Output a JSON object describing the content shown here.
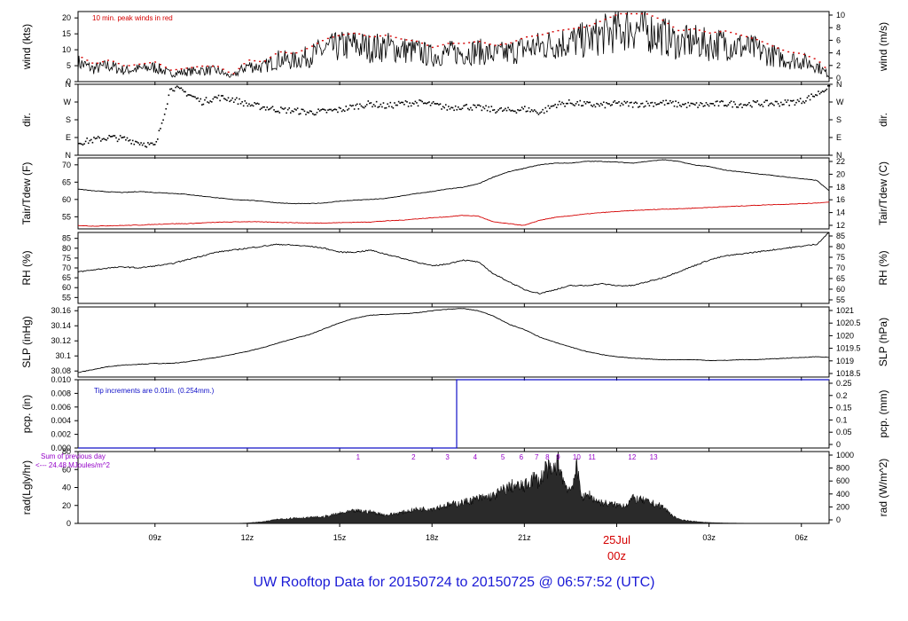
{
  "title": "UW Rooftop Data for 20150724  to  20150725 @ 06:57:52  (UTC)",
  "colors": {
    "trace": "#000000",
    "red": "#d40000",
    "blue": "#1010c8",
    "purple": "#9400c8",
    "title": "#1a1ad6"
  },
  "chart_data": [
    {
      "type": "line",
      "id": "wind",
      "ylabel": "wind (kts)",
      "ylabel_right": "wind (m/s)",
      "ylim": [
        0,
        22
      ],
      "yticks": [
        0,
        5,
        10,
        15,
        20
      ],
      "yticks_right_labels": [
        "0",
        "2",
        "4",
        "6",
        "8",
        "10"
      ],
      "annotation": "10 min. peak winds in red",
      "series": [
        {
          "x": [
            6.5,
            7,
            7.5,
            8,
            8.5,
            9,
            9.5,
            10,
            10.5,
            11,
            11.5,
            12,
            12.5,
            13,
            13.5,
            14,
            14.5,
            15,
            15.5,
            16,
            16.5,
            17,
            17.5,
            18,
            18.5,
            19,
            19.5,
            20,
            20.5,
            21,
            21.5,
            22,
            22.5,
            23,
            23.5,
            24,
            24.5,
            25,
            25.5,
            26,
            26.5,
            27,
            27.5,
            28,
            28.5,
            29,
            29.5,
            30,
            30.5,
            30.9
          ],
          "y": [
            6,
            4,
            5,
            3.5,
            4,
            4.5,
            2.5,
            3,
            3.5,
            3.5,
            1.5,
            5,
            4.5,
            7,
            6.5,
            8,
            10,
            11,
            11.5,
            10.5,
            11,
            10,
            9.5,
            8,
            9,
            9,
            9.5,
            8.5,
            9,
            10.5,
            11,
            12,
            12.5,
            13,
            14.5,
            16,
            17,
            16,
            14.5,
            12,
            12.5,
            11.5,
            12,
            11,
            10,
            8.5,
            7,
            6.5,
            5,
            2
          ]
        }
      ]
    },
    {
      "type": "scatter",
      "id": "dir",
      "ylabel": "dir.",
      "ylabel_right": "dir.",
      "yticks_labels": [
        "N",
        "E",
        "S",
        "W",
        "N"
      ],
      "series": [
        {
          "x": [
            6.5,
            7,
            7.5,
            8,
            8.5,
            9,
            9.5,
            10,
            10.5,
            11,
            11.5,
            12,
            12.5,
            13,
            13.5,
            14,
            14.5,
            15,
            15.5,
            16,
            16.5,
            17,
            17.5,
            18,
            18.5,
            19,
            19.5,
            20,
            20.5,
            21,
            21.5,
            22,
            22.5,
            23,
            23.5,
            24,
            24.5,
            25,
            25.5,
            26,
            26.5,
            27,
            27.5,
            28,
            28.5,
            29,
            29.5,
            30,
            30.5,
            30.9
          ],
          "y": [
            0.75,
            0.9,
            1.05,
            0.95,
            0.75,
            0.55,
            3.9,
            3.55,
            3.05,
            3.3,
            3.2,
            2.9,
            2.75,
            2.6,
            2.55,
            2.45,
            2.5,
            2.6,
            2.8,
            2.95,
            2.8,
            2.95,
            3.0,
            2.9,
            2.7,
            2.8,
            2.7,
            2.6,
            2.55,
            2.65,
            2.45,
            2.9,
            3.0,
            2.9,
            2.85,
            2.95,
            2.9,
            2.95,
            3.0,
            2.9,
            2.85,
            2.9,
            2.95,
            2.9,
            2.95,
            2.95,
            3.0,
            3.1,
            3.5,
            3.95
          ]
        }
      ]
    },
    {
      "type": "line",
      "id": "temp",
      "ylabel": "Tair/Tdew (F)",
      "ylabel_right": "Tair/Tdew (C)",
      "ylim": [
        51.5,
        72
      ],
      "yticks": [
        55,
        60,
        65,
        70
      ],
      "yticks_right_labels": [
        "12",
        "14",
        "16",
        "18",
        "20",
        "22"
      ],
      "series": [
        {
          "name": "Tair",
          "color": "black",
          "x": [
            6.5,
            7,
            7.5,
            8,
            8.5,
            9,
            9.5,
            10,
            10.5,
            11,
            11.5,
            12,
            12.5,
            13,
            13.5,
            14,
            14.5,
            15,
            15.5,
            16,
            16.5,
            17,
            17.5,
            18,
            18.5,
            19,
            19.5,
            20,
            20.5,
            21,
            21.5,
            22,
            22.5,
            23,
            23.5,
            24,
            24.5,
            25,
            25.5,
            26,
            26.5,
            27,
            27.5,
            28,
            28.5,
            29,
            29.5,
            30,
            30.5,
            30.9
          ],
          "y": [
            63,
            62.5,
            62.2,
            62,
            62.3,
            62,
            61.8,
            61.5,
            61,
            60.5,
            60,
            59.8,
            59.5,
            59,
            58.8,
            58.8,
            59,
            59.5,
            59.8,
            60,
            60.3,
            61,
            61.7,
            62.3,
            63,
            63.5,
            64.5,
            66.5,
            68,
            69,
            70,
            70.5,
            70.5,
            71,
            71,
            70.8,
            70.5,
            71,
            71.5,
            71,
            70,
            69.5,
            68.5,
            68,
            67.5,
            67,
            66.5,
            66,
            65.5,
            62.5
          ]
        },
        {
          "name": "Tdew",
          "color": "red",
          "x": [
            6.5,
            7,
            7.5,
            8,
            8.5,
            9,
            9.5,
            10,
            10.5,
            11,
            11.5,
            12,
            12.5,
            13,
            13.5,
            14,
            14.5,
            15,
            15.5,
            16,
            16.5,
            17,
            17.5,
            18,
            18.5,
            19,
            19.5,
            20,
            20.5,
            21,
            21.5,
            22,
            22.5,
            23,
            23.5,
            24,
            24.5,
            25,
            25.5,
            26,
            26.5,
            27,
            27.5,
            28,
            28.5,
            29,
            29.5,
            30,
            30.5,
            30.9
          ],
          "y": [
            52.5,
            52.3,
            52.4,
            52.5,
            52.6,
            52.8,
            53,
            53,
            53.2,
            53.4,
            53.5,
            53.6,
            53.5,
            53.4,
            53.3,
            53.2,
            53.2,
            53.3,
            53.4,
            53.5,
            53.8,
            54,
            54.4,
            54.7,
            55,
            55.4,
            55.2,
            53.5,
            53,
            52.5,
            54,
            54.8,
            55.3,
            55.8,
            56.2,
            56.5,
            56.8,
            57,
            57.2,
            57.3,
            57.5,
            57.7,
            57.9,
            58.1,
            58.3,
            58.5,
            58.6,
            58.8,
            59,
            59.2
          ]
        }
      ]
    },
    {
      "type": "line",
      "id": "rh",
      "ylabel": "RH (%)",
      "ylabel_right": "RH (%)",
      "ylim": [
        52,
        88
      ],
      "yticks": [
        55,
        60,
        65,
        70,
        75,
        80,
        85
      ],
      "yticks_right_labels": [
        "55",
        "60",
        "65",
        "70",
        "75",
        "80",
        "85"
      ],
      "series": [
        {
          "x": [
            6.5,
            7,
            7.5,
            8,
            8.5,
            9,
            9.5,
            10,
            10.5,
            11,
            11.5,
            12,
            12.5,
            13,
            13.5,
            14,
            14.5,
            15,
            15.5,
            16,
            16.5,
            17,
            17.5,
            18,
            18.5,
            19,
            19.5,
            20,
            20.5,
            21,
            21.5,
            22,
            22.5,
            23,
            23.5,
            24,
            24.5,
            25,
            25.5,
            26,
            26.5,
            27,
            27.5,
            28,
            28.5,
            29,
            29.5,
            30,
            30.5,
            30.9
          ],
          "y": [
            68,
            69,
            70,
            70.5,
            70,
            71,
            72,
            74,
            76,
            78,
            79,
            80,
            81,
            82,
            81.5,
            81,
            80,
            78,
            78,
            79,
            77,
            75,
            73,
            71,
            72,
            74,
            73,
            67,
            63,
            59,
            57,
            59,
            61,
            61,
            62,
            61,
            61,
            63,
            65,
            68,
            71,
            74,
            76,
            77,
            78,
            79,
            80,
            81,
            82,
            88
          ]
        }
      ]
    },
    {
      "type": "line",
      "id": "slp",
      "ylabel": "SLP (inHg)",
      "ylabel_right": "SLP (hPa)",
      "ylim": [
        30.072,
        30.165
      ],
      "yticks": [
        30.08,
        30.1,
        30.12,
        30.14,
        30.16
      ],
      "yticks_right_labels": [
        "1018.5",
        "1019",
        "1019.5",
        "1020",
        "1020.5",
        "1021"
      ],
      "series": [
        {
          "x": [
            6.5,
            7,
            7.5,
            8,
            8.5,
            9,
            9.5,
            10,
            10.5,
            11,
            11.5,
            12,
            12.5,
            13,
            13.5,
            14,
            14.5,
            15,
            15.5,
            16,
            16.5,
            17,
            17.5,
            18,
            18.5,
            19,
            19.5,
            20,
            20.5,
            21,
            21.5,
            22,
            22.5,
            23,
            23.5,
            24,
            24.5,
            25,
            25.5,
            26,
            26.5,
            27,
            27.5,
            28,
            28.5,
            29,
            29.5,
            30,
            30.5,
            30.9
          ],
          "y": [
            30.078,
            30.082,
            30.086,
            30.088,
            30.089,
            30.09,
            30.09,
            30.092,
            30.095,
            30.098,
            30.102,
            30.106,
            30.111,
            30.117,
            30.123,
            30.128,
            30.136,
            30.144,
            30.15,
            30.154,
            30.155,
            30.156,
            30.157,
            30.16,
            30.162,
            30.163,
            30.16,
            30.153,
            30.142,
            30.135,
            30.125,
            30.118,
            30.112,
            30.106,
            30.102,
            30.099,
            30.097,
            30.096,
            30.095,
            30.095,
            30.095,
            30.094,
            30.094,
            30.095,
            30.095,
            30.096,
            30.097,
            30.098,
            30.099,
            30.098
          ]
        }
      ]
    },
    {
      "type": "line",
      "id": "pcp",
      "ylabel": "pcp. (in)",
      "ylabel_right": "pcp. (mm)",
      "ylim": [
        0,
        0.01
      ],
      "yticks": [
        0,
        0.002,
        0.004,
        0.006,
        0.008,
        0.01
      ],
      "yticks_labels": [
        "0.000",
        "0.002",
        "0.004",
        "0.006",
        "0.008",
        "0.010"
      ],
      "yticks_right_labels": [
        "0",
        "0.05",
        "0.1",
        "0.15",
        "0.2",
        "0.25"
      ],
      "annotation": "Tip increments are 0.01in. (0.254mm.)",
      "series": [
        {
          "x": [
            6.5,
            18.8,
            18.8,
            30.9
          ],
          "y": [
            0,
            0,
            0.01,
            0.01
          ]
        }
      ]
    },
    {
      "type": "area",
      "id": "rad",
      "ylabel": "rad(Lgly/hr)",
      "ylabel_right": "rad (W/m^2)",
      "ylim": [
        0,
        80
      ],
      "yticks": [
        0,
        20,
        40,
        60,
        80
      ],
      "yticks_right_labels": [
        "0",
        "200",
        "400",
        "600",
        "800",
        "1000"
      ],
      "annotation_lines": [
        "Sum of previous day",
        "<--- 24.48 MJoules/m^2"
      ],
      "hour_markers": [
        {
          "label": "1",
          "x": 15.6
        },
        {
          "label": "2",
          "x": 17.4
        },
        {
          "label": "3",
          "x": 18.5
        },
        {
          "label": "4",
          "x": 19.4
        },
        {
          "label": "5",
          "x": 20.3
        },
        {
          "label": "6",
          "x": 20.9
        },
        {
          "label": "7",
          "x": 21.4
        },
        {
          "label": "8",
          "x": 21.75
        },
        {
          "label": "9",
          "x": 22.1
        },
        {
          "label": "10",
          "x": 22.7
        },
        {
          "label": "11",
          "x": 23.2
        },
        {
          "label": "12",
          "x": 24.5
        },
        {
          "label": "13",
          "x": 25.2
        }
      ],
      "series": [
        {
          "x": [
            6.5,
            11.5,
            12,
            12.5,
            13,
            13.5,
            14,
            14.5,
            15,
            15.5,
            16,
            16.5,
            17,
            17.5,
            18,
            18.5,
            19,
            19.5,
            20,
            20.3,
            20.6,
            21,
            21.3,
            21.5,
            21.7,
            21.9,
            22.1,
            22.3,
            22.5,
            22.7,
            22.9,
            23.1,
            23.3,
            23.5,
            24,
            24.3,
            24.5,
            24.8,
            25,
            25.5,
            25.8,
            26,
            26.5,
            27,
            27.5,
            28,
            28.5,
            29,
            29.5,
            30,
            30.9
          ],
          "y": [
            0,
            0,
            0.5,
            2,
            5,
            6.5,
            7,
            8,
            12,
            15,
            14,
            10,
            13,
            17,
            18,
            22,
            25,
            30,
            33,
            40,
            45,
            44,
            55,
            50,
            68,
            60,
            75,
            48,
            40,
            66,
            30,
            35,
            28,
            25,
            22,
            22,
            30,
            28,
            26,
            20,
            10,
            5,
            2.5,
            1,
            0.5,
            0.3,
            0.1,
            0.1,
            0,
            0,
            0
          ]
        }
      ]
    }
  ],
  "x_axis": {
    "tick_labels": [
      "09z",
      "12z",
      "15z",
      "18z",
      "21z",
      "03z",
      "06z"
    ],
    "tick_hours": [
      9,
      12,
      15,
      18,
      21,
      27,
      30
    ],
    "date_label_line1": "25Jul",
    "date_label_line2": "00z",
    "date_label_hour": 24
  }
}
